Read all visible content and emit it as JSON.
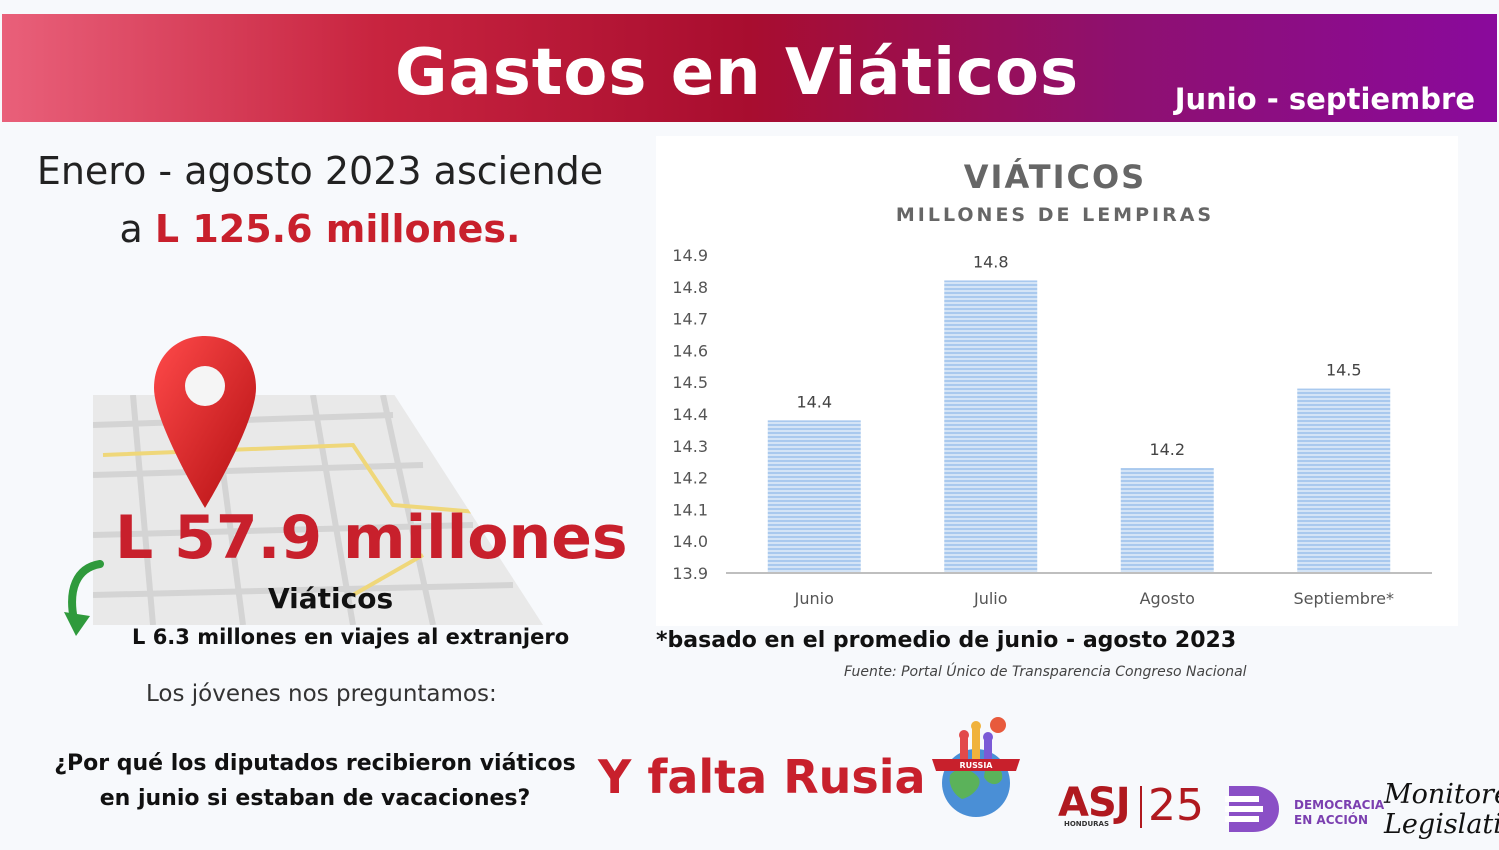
{
  "header": {
    "title": "Gastos en Viáticos",
    "period": "Junio - septiembre"
  },
  "intro": {
    "line1": "Enero - agosto 2023 asciende",
    "prefix": "a ",
    "amount": "L 125.6 millones."
  },
  "highlight": {
    "amount": "L 57.9 millones",
    "label": "Viáticos",
    "sub": "L 6.3 millones en viajes al extranjero"
  },
  "question": {
    "intro": "Los jóvenes nos preguntamos:",
    "text": "¿Por qué los diputados recibieron viáticos en junio si estaban de vacaciones?"
  },
  "russia": {
    "text": "Y falta Rusia",
    "badge": "RUSSIA"
  },
  "chart_data": {
    "type": "bar",
    "title": "VIÁTICOS",
    "subtitle": "MILLONES DE LEMPIRAS",
    "categories": [
      "Junio",
      "Julio",
      "Agosto",
      "Septiembre*"
    ],
    "values": [
      14.38,
      14.82,
      14.23,
      14.48
    ],
    "data_labels": [
      "14.4",
      "14.8",
      "14.2",
      "14.5"
    ],
    "yticks": [
      "13.9",
      "14.0",
      "14.1",
      "14.2",
      "14.3",
      "14.4",
      "14.5",
      "14.6",
      "14.7",
      "14.8",
      "14.9"
    ],
    "ylim": [
      13.9,
      14.9
    ],
    "grid": false,
    "legend": "none",
    "bar_color": "#a9c9ee",
    "bar_stripe_color": "#ffffff"
  },
  "chart_notes": {
    "footnote": "*basado en el promedio de junio - agosto 2023",
    "source": "Fuente: Portal Único de Transparencia Congreso Nacional"
  },
  "logos": {
    "asj": "ASJ",
    "asj_sub": "HONDURAS",
    "asj_years": "25",
    "dea_line1": "DEMOCRACIA",
    "dea_line2": "EN ACCIÓN",
    "mon_line1": "Monitoreo",
    "mon_line2": "Legislativo"
  },
  "colors": {
    "accent_red": "#c8202c",
    "header_start": "#e9607a",
    "header_end": "#8a0a9c",
    "dea_purple": "#7b3fb0"
  }
}
